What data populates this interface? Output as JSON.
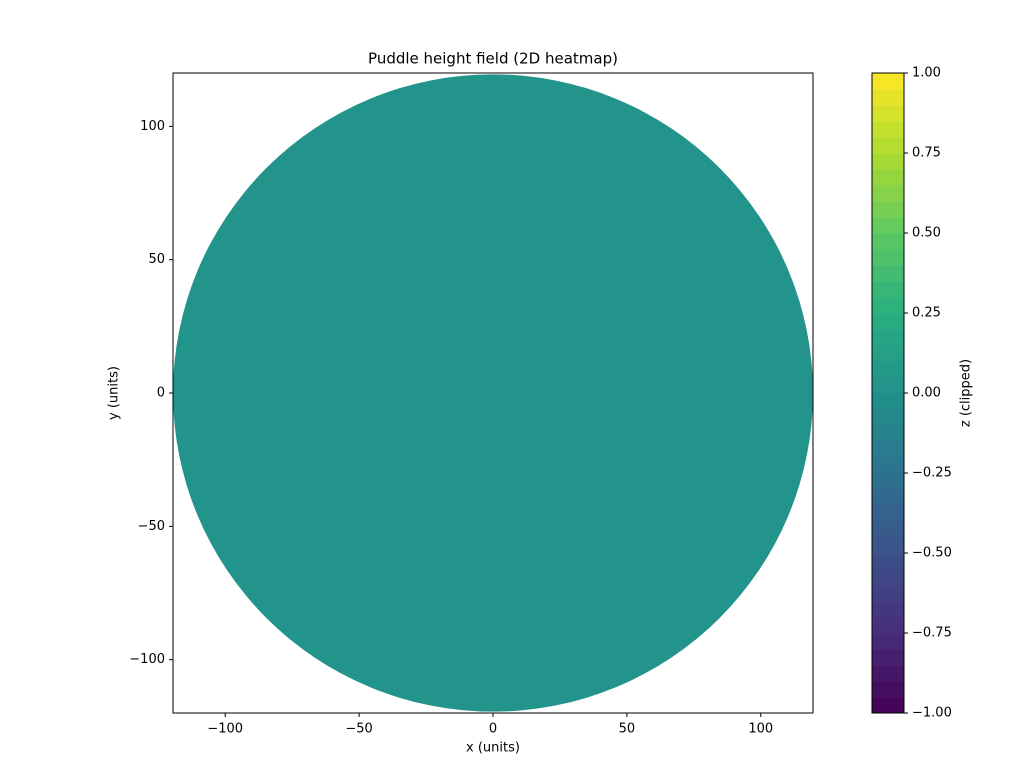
{
  "chart_data": {
    "type": "heatmap",
    "title": "Puddle height field (2D heatmap)",
    "x_label": "x (units)",
    "y_label": "y (units)",
    "xlim": [
      -119.5,
      119.5
    ],
    "ylim": [
      -120,
      120
    ],
    "xticks": [
      {
        "value": -100,
        "label": "−100"
      },
      {
        "value": -50,
        "label": "−50"
      },
      0,
      50,
      100
    ],
    "yticks": [
      {
        "value": -100,
        "label": "−100"
      },
      {
        "value": -50,
        "label": "−50"
      },
      0,
      50,
      100
    ],
    "disc": {
      "radius": 119.5,
      "value": 0
    },
    "colorbar": {
      "label": "z (clipped)",
      "lim": [
        -1,
        1
      ],
      "levels": 40,
      "colors": [
        "#440154",
        "#472d7b",
        "#3b528b",
        "#2c728e",
        "#21918c",
        "#28ae80",
        "#5ec962",
        "#addc30",
        "#fde725"
      ],
      "ticks": [
        {
          "value": -1,
          "label": "−1.00"
        },
        {
          "value": -0.75,
          "label": "−0.75"
        },
        {
          "value": -0.5,
          "label": "−0.50"
        },
        {
          "value": -0.25,
          "label": "−0.25"
        },
        {
          "value": 0,
          "label": "0.00"
        },
        {
          "value": 0.25,
          "label": "0.25"
        },
        {
          "value": 0.5,
          "label": "0.50"
        },
        {
          "value": 0.75,
          "label": "0.75"
        },
        {
          "value": 1,
          "label": "1.00"
        }
      ]
    }
  }
}
